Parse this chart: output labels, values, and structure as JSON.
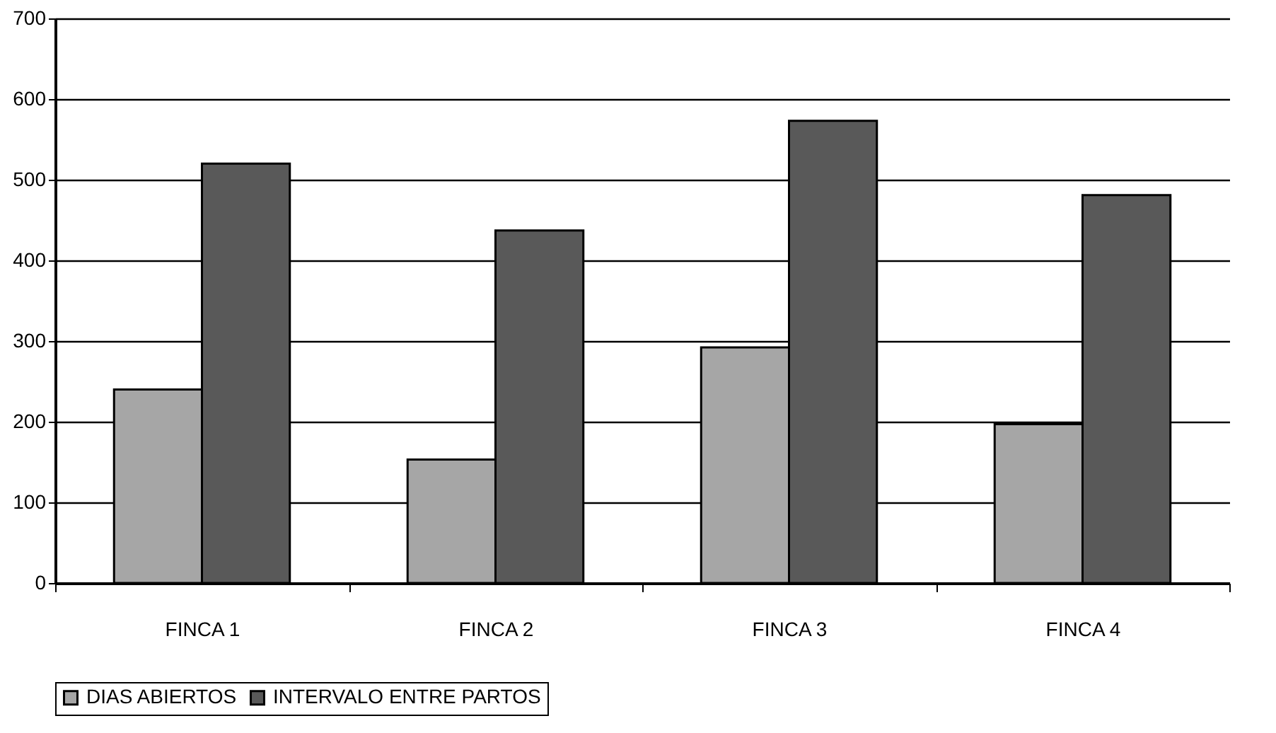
{
  "chart_data": {
    "type": "bar",
    "categories": [
      "FINCA 1",
      "FINCA 2",
      "FINCA 3",
      "FINCA 4"
    ],
    "series": [
      {
        "name": "DIAS ABIERTOS",
        "color": "#a6a6a6",
        "values": [
          240,
          153,
          292,
          197
        ]
      },
      {
        "name": "INTERVALO ENTRE PARTOS",
        "color": "#595959",
        "values": [
          520,
          437,
          573,
          481
        ]
      }
    ],
    "ylim": [
      0,
      700
    ],
    "yticks": [
      0,
      100,
      200,
      300,
      400,
      500,
      600,
      700
    ],
    "grid": "y",
    "legend": "bottom"
  }
}
